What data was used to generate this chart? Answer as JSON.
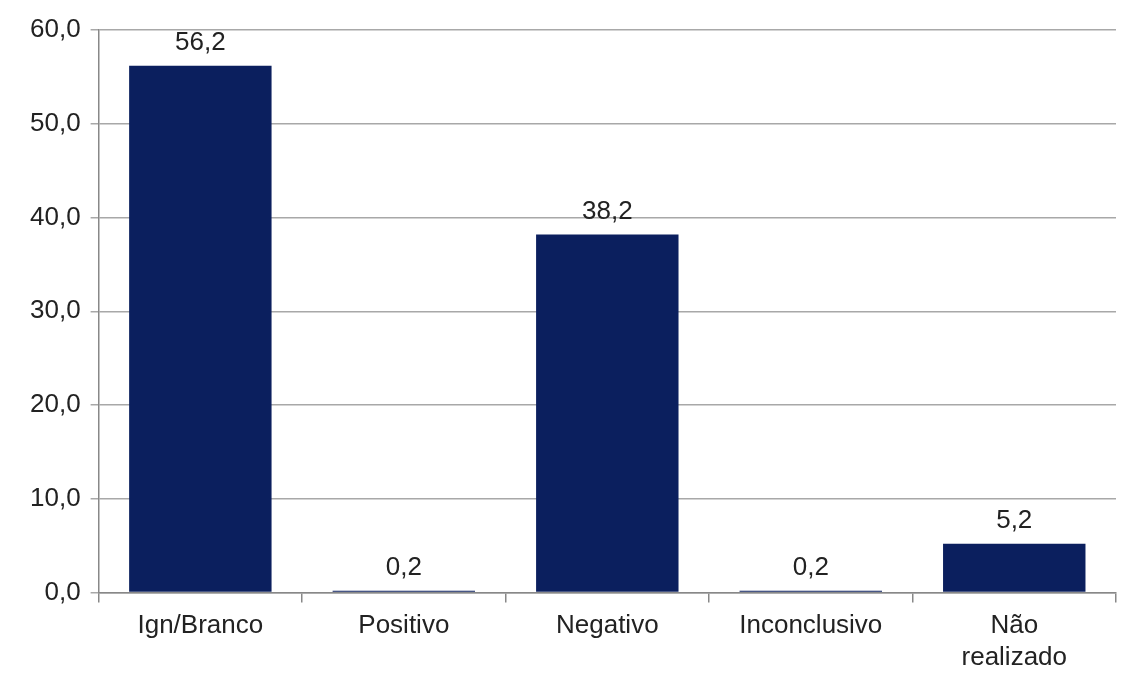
{
  "chart_data": {
    "type": "bar",
    "categories": [
      "Ign/Branco",
      "Positivo",
      "Negativo",
      "Inconclusivo",
      "Não realizado"
    ],
    "values": [
      56.2,
      0.2,
      38.2,
      0.2,
      5.2
    ],
    "color": "#0b1f5e",
    "value_labels": [
      "56,2",
      "0,2",
      "38,2",
      "0,2",
      "5,2"
    ],
    "ylim": [
      0,
      60
    ],
    "yticks": [
      {
        "value": 0,
        "label": "0,0"
      },
      {
        "value": 10,
        "label": "10,0"
      },
      {
        "value": 20,
        "label": "20,0"
      },
      {
        "value": 30,
        "label": "30,0"
      },
      {
        "value": 40,
        "label": "40,0"
      },
      {
        "value": 50,
        "label": "50,0"
      },
      {
        "value": 60,
        "label": "60,0"
      }
    ],
    "grid": "y",
    "legend": false
  }
}
